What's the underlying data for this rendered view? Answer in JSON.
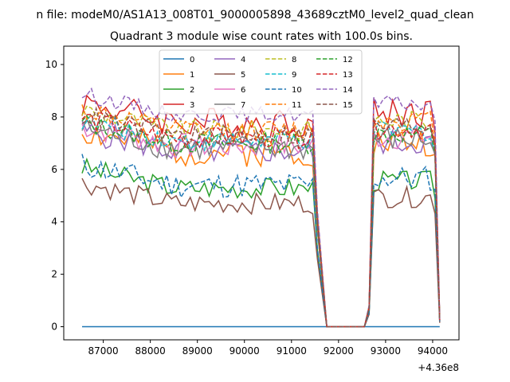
{
  "chart_data": {
    "type": "line",
    "suptitle": "n file: modeM0/AS1A13_008T01_9000005898_43689cztM0_level2_quad_clean",
    "title": "Quadrant 3 module wise count rates with 100.0s bins.",
    "xlabel": "",
    "ylabel": "",
    "x_offset_label": "+4.36e8",
    "xlim": [
      86160,
      94560
    ],
    "ylim": [
      -0.5,
      10.7
    ],
    "xticks": [
      87000,
      88000,
      89000,
      90000,
      91000,
      92000,
      93000,
      94000
    ],
    "yticks": [
      0,
      2,
      4,
      6,
      8,
      10
    ],
    "grid": false,
    "legend_position": "top-center",
    "legend_columns": 4,
    "x_segments": [
      [
        86550,
        91450
      ],
      [
        91550,
        91750
      ],
      [
        91750,
        92550
      ],
      [
        92650,
        94150
      ]
    ],
    "gap_value": 0,
    "series": [
      {
        "name": "0",
        "color": "#1f77b4",
        "dash": "solid",
        "level": 0,
        "noise": 0,
        "end": 0,
        "seed": 1
      },
      {
        "name": "1",
        "color": "#ff7f0e",
        "dash": "solid",
        "level": 6.7,
        "noise": 0.6,
        "end": 0.2,
        "seed": 2
      },
      {
        "name": "2",
        "color": "#2ca02c",
        "dash": "solid",
        "level": 5.3,
        "noise": 0.4,
        "end": 0.2,
        "seed": 3
      },
      {
        "name": "3",
        "color": "#d62728",
        "dash": "solid",
        "level": 7.8,
        "noise": 0.6,
        "end": 0.3,
        "seed": 4
      },
      {
        "name": "4",
        "color": "#9467bd",
        "dash": "solid",
        "level": 6.7,
        "noise": 0.5,
        "end": 0.2,
        "seed": 5
      },
      {
        "name": "5",
        "color": "#8c564b",
        "dash": "solid",
        "level": 4.7,
        "noise": 0.4,
        "end": 0.15,
        "seed": 6
      },
      {
        "name": "6",
        "color": "#e377c2",
        "dash": "solid",
        "level": 6.9,
        "noise": 0.5,
        "end": 0.2,
        "seed": 7
      },
      {
        "name": "7",
        "color": "#7f7f7f",
        "dash": "solid",
        "level": 6.8,
        "noise": 0.5,
        "end": 0.2,
        "seed": 8
      },
      {
        "name": "8",
        "color": "#bcbd22",
        "dash": "dashed",
        "level": 7.5,
        "noise": 0.4,
        "end": 0.25,
        "seed": 9
      },
      {
        "name": "9",
        "color": "#17becf",
        "dash": "dashed",
        "level": 7.1,
        "noise": 0.4,
        "end": 0.25,
        "seed": 10
      },
      {
        "name": "10",
        "color": "#1f77b4",
        "dash": "dashed",
        "level": 5.4,
        "noise": 0.5,
        "end": 0.2,
        "seed": 11
      },
      {
        "name": "11",
        "color": "#ff7f0e",
        "dash": "dashed",
        "level": 7.5,
        "noise": 0.4,
        "end": 0.25,
        "seed": 12
      },
      {
        "name": "12",
        "color": "#2ca02c",
        "dash": "dashed",
        "level": 7.0,
        "noise": 0.4,
        "end": 0.25,
        "seed": 13
      },
      {
        "name": "13",
        "color": "#d62728",
        "dash": "dashed",
        "level": 7.2,
        "noise": 0.4,
        "end": 0.25,
        "seed": 14
      },
      {
        "name": "14",
        "color": "#9467bd",
        "dash": "dashed",
        "level": 8.1,
        "noise": 0.3,
        "end": 0.3,
        "seed": 15
      },
      {
        "name": "15",
        "color": "#8c564b",
        "dash": "dashed",
        "level": 7.3,
        "noise": 0.4,
        "end": 0.25,
        "seed": 16
      }
    ]
  }
}
